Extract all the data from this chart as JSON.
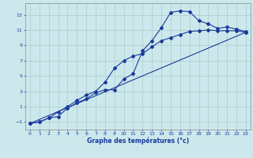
{
  "xlabel": "Graphe des températures (°c)",
  "xlim": [
    -0.5,
    23.5
  ],
  "ylim": [
    -2,
    14.5
  ],
  "yticks": [
    -1,
    1,
    3,
    5,
    7,
    9,
    11,
    13
  ],
  "xticks": [
    0,
    1,
    2,
    3,
    4,
    5,
    6,
    7,
    8,
    9,
    10,
    11,
    12,
    13,
    14,
    15,
    16,
    17,
    18,
    19,
    20,
    21,
    22,
    23
  ],
  "bg_color": "#cce8ec",
  "grid_color": "#aacccc",
  "line_color": "#1a3a9c",
  "line1_x": [
    0,
    1,
    2,
    3,
    4,
    5,
    6,
    7,
    8,
    9,
    10,
    11,
    12,
    13,
    14,
    15,
    16,
    17,
    18,
    19,
    20,
    21,
    22,
    23
  ],
  "line1_y": [
    -1.2,
    -1.0,
    -0.5,
    -0.3,
    0.8,
    1.5,
    2.0,
    2.8,
    3.2,
    3.2,
    4.6,
    5.3,
    8.3,
    9.6,
    11.3,
    13.3,
    13.5,
    13.4,
    12.2,
    11.8,
    11.2,
    11.4,
    11.1,
    10.8
  ],
  "line2_x": [
    0,
    1,
    2,
    3,
    4,
    5,
    6,
    7,
    8,
    9,
    10,
    11,
    12,
    13,
    14,
    15,
    16,
    17,
    18,
    19,
    20,
    21,
    22,
    23
  ],
  "line2_y": [
    -1.2,
    -1.0,
    -0.5,
    0.3,
    1.0,
    1.8,
    2.5,
    3.0,
    4.2,
    6.0,
    7.0,
    7.6,
    7.9,
    8.8,
    9.6,
    10.0,
    10.4,
    10.8,
    10.9,
    11.0,
    10.9,
    10.9,
    10.9,
    10.7
  ],
  "line3_x": [
    0,
    23
  ],
  "line3_y": [
    -1.2,
    10.7
  ]
}
